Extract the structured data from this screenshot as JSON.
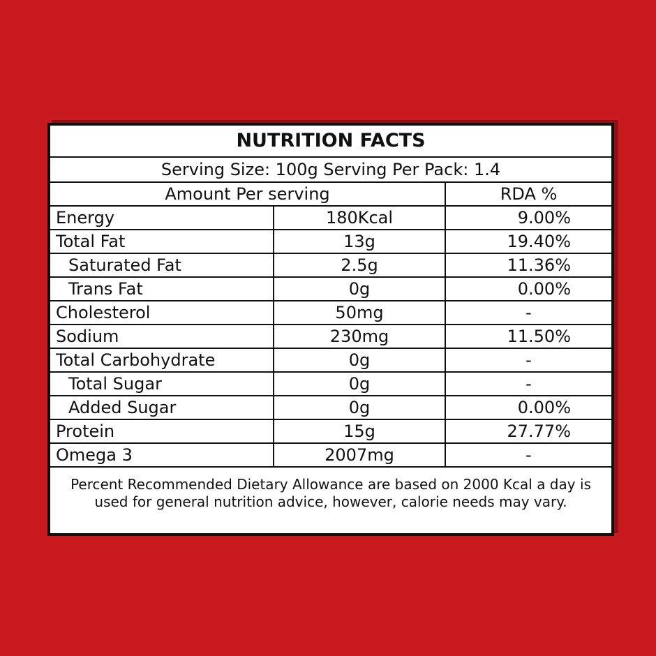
{
  "header": {
    "title": "NUTRITION FACTS",
    "serving": "Serving Size: 100g Serving Per Pack: 1.4"
  },
  "table": {
    "columns": [
      "Amount Per serving",
      "RDA %"
    ],
    "rows": [
      [
        "Energy",
        "180Kcal",
        "9.00%"
      ],
      [
        "Total Fat",
        "13g",
        "19.40%"
      ],
      [
        "Saturated Fat",
        "2.5g",
        "11.36%"
      ],
      [
        "Trans Fat",
        "0g",
        "0.00%"
      ],
      [
        "Cholesterol",
        "50mg",
        "-"
      ],
      [
        "Sodium",
        "230mg",
        "11.50%"
      ],
      [
        "Total Carbohydrate",
        "0g",
        "-"
      ],
      [
        "Total Sugar",
        "0g",
        "-"
      ],
      [
        "Added Sugar",
        "0g",
        "0.00%"
      ],
      [
        "Protein",
        "15g",
        "27.77%"
      ],
      [
        "Omega 3",
        "2007mg",
        "-"
      ]
    ]
  },
  "footer": {
    "note": "Percent Recommended Dietary Allowance are based on 2000 Kcal a day is used for general nutrition advice, however, calorie needs may vary."
  }
}
